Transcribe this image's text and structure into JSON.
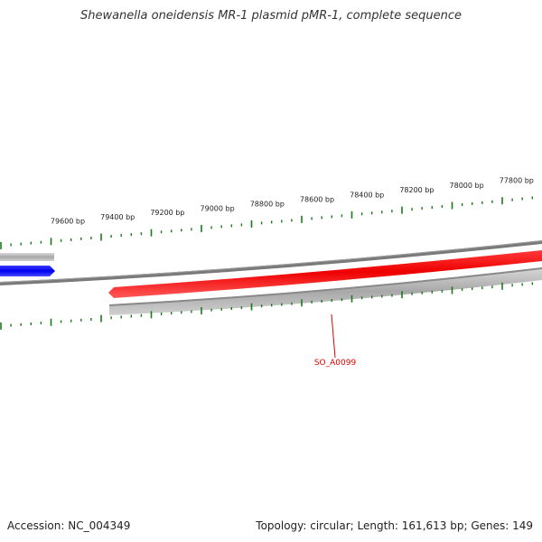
{
  "title": "Shewanella oneidensis MR-1 plasmid pMR-1, complete sequence",
  "footer": {
    "accession": "Accession: NC_004349",
    "summary": "Topology: circular; Length: 161,613 bp; Genes: 149"
  },
  "scale": {
    "tick_labels": [
      "79600 bp",
      "79400 bp",
      "79200 bp",
      "79000 bp",
      "78800 bp",
      "78600 bp",
      "78400 bp",
      "78200 bp",
      "78000 bp",
      "77800 bp"
    ]
  },
  "genes": [
    {
      "label": "SO_A0099",
      "strand": "forward",
      "color": "#ff0000"
    },
    {
      "label": "",
      "strand": "reverse",
      "color": "#0000ff"
    }
  ],
  "colors": {
    "backbone": "#808080",
    "ticks": "#1a7a1a",
    "gene_forward": "#ff0000",
    "gene_reverse": "#0000ff",
    "label": "#e00000"
  }
}
